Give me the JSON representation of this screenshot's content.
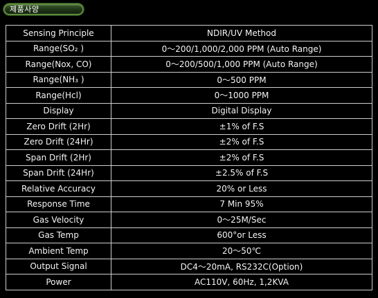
{
  "header": {
    "title": "제품사양"
  },
  "spec_table": {
    "rows": [
      {
        "label": "Sensing Principle",
        "value": "NDIR/UV Method"
      },
      {
        "label": "Range(SO₂  )",
        "value": "0～200/1,000/2,000 PPM (Auto Range)"
      },
      {
        "label": "Range(Nox, CO)",
        "value": "0～200/500/1,000 PPM (Auto Range)"
      },
      {
        "label": "Range(NH₃  )",
        "value": "0～500 PPM"
      },
      {
        "label": "Range(Hcl)",
        "value": "0～1000 PPM"
      },
      {
        "label": "Display",
        "value": "Digital Display"
      },
      {
        "label": "Zero Drift (2Hr)",
        "value": "±1% of F.S"
      },
      {
        "label": "Zero Drift (24Hr)",
        "value": "±2% of F.S"
      },
      {
        "label": "Span Drift (2Hr)",
        "value": "±2% of F.S"
      },
      {
        "label": "Span Drift (24Hr)",
        "value": "±2.5% of F.S"
      },
      {
        "label": "Relative Accuracy",
        "value": "20% or Less"
      },
      {
        "label": "Response Time",
        "value": "7 Min 95%"
      },
      {
        "label": "Gas Velocity",
        "value": "0～25M/Sec"
      },
      {
        "label": "Gas Temp",
        "value": "600°or Less"
      },
      {
        "label": "Ambient Temp",
        "value": "20～50℃"
      },
      {
        "label": "Output Signal",
        "value": "DC4～20mA, RS232C(Option)"
      },
      {
        "label": "Power",
        "value": "AC110V, 60Hz, 1,2KVA"
      }
    ]
  }
}
